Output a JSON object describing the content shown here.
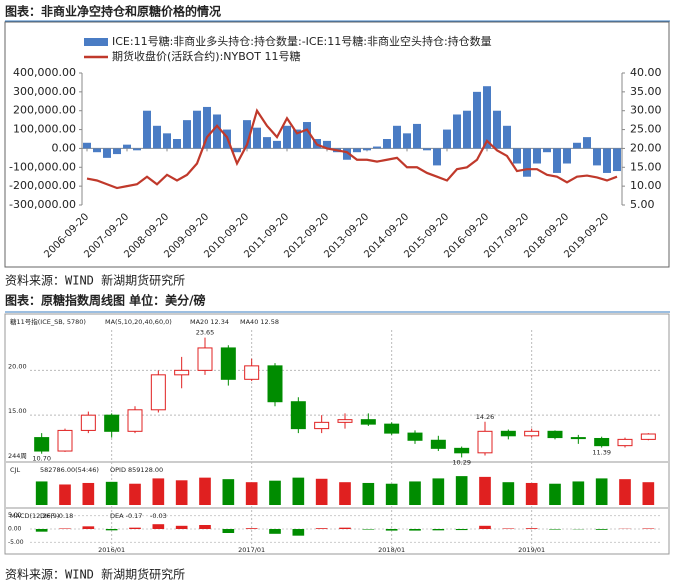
{
  "document": {
    "captions": [
      "图表：非商业净空持仓和原糖价格的情况",
      "图表：原糖指数周线图 单位：美分/磅"
    ],
    "sources": [
      "资料来源：WIND 新湖期货研究所",
      "资料来源：WIND 新湖期货研究所"
    ]
  },
  "chart_data": [
    {
      "type": "bar",
      "categories": [
        "2006-09-20",
        null,
        null,
        null,
        "2007-09-20",
        null,
        null,
        null,
        "2008-09-20",
        null,
        null,
        null,
        "2009-09-20",
        null,
        null,
        null,
        "2010-09-20",
        null,
        null,
        null,
        "2011-09-20",
        null,
        null,
        null,
        "2012-09-20",
        null,
        null,
        null,
        "2013-09-20",
        null,
        null,
        null,
        "2014-09-20",
        null,
        null,
        null,
        "2015-09-20",
        null,
        null,
        null,
        "2016-09-20",
        null,
        null,
        null,
        "2017-09-20",
        null,
        null,
        null,
        "2018-09-20",
        null,
        null,
        null,
        "2019-09-20",
        null
      ],
      "series": [
        {
          "name": "ICE:11号糖:非商业多头持仓:持仓数量:-ICE:11号糖:非商业空头持仓:持仓数量",
          "type": "bar",
          "color": "#4a7cc4",
          "values": [
            30000,
            -20000,
            -50000,
            -30000,
            20000,
            -10000,
            200000,
            120000,
            80000,
            50000,
            150000,
            200000,
            220000,
            180000,
            100000,
            -20000,
            150000,
            110000,
            60000,
            40000,
            120000,
            100000,
            140000,
            50000,
            40000,
            -20000,
            -60000,
            -20000,
            -10000,
            10000,
            50000,
            120000,
            80000,
            130000,
            -10000,
            -90000,
            100000,
            180000,
            200000,
            300000,
            330000,
            200000,
            120000,
            -80000,
            -150000,
            -80000,
            -20000,
            -130000,
            -80000,
            30000,
            60000,
            -90000,
            -130000,
            -120000
          ]
        },
        {
          "name": "期货收盘价(活跃合约):NYBOT 11号糖",
          "type": "line",
          "axis": "y2",
          "color": "#c0392b",
          "values": [
            12,
            11.5,
            10.5,
            9.5,
            10,
            10.5,
            12.5,
            10.5,
            13,
            11.5,
            13,
            16,
            23,
            26,
            23,
            16,
            21,
            30,
            26,
            23,
            28,
            24,
            25,
            21,
            20,
            19.5,
            19,
            17,
            17,
            16.5,
            17,
            17.5,
            15,
            15,
            13.5,
            12.5,
            11.5,
            14.5,
            15,
            17,
            22,
            19.5,
            18,
            14,
            14.5,
            14.5,
            13,
            12.5,
            11,
            12.5,
            12.8,
            12.3,
            11.5,
            12.5
          ]
        }
      ],
      "ylim": [
        -300000,
        400000
      ],
      "yticks": [
        {
          "value": -300000,
          "label": "-300,000.00"
        },
        {
          "value": -200000,
          "label": "-200,000.00"
        },
        {
          "value": -100000,
          "label": "-100,000.00"
        },
        {
          "value": 0,
          "label": "0.00"
        },
        {
          "value": 100000,
          "label": "100,000.00"
        },
        {
          "value": 200000,
          "label": "200,000.00"
        },
        {
          "value": 300000,
          "label": "300,000.00"
        },
        {
          "value": 400000,
          "label": "400,000.00"
        }
      ],
      "y2lim": [
        5,
        40
      ],
      "y2ticks": [
        {
          "value": 5,
          "label": "5.00"
        },
        {
          "value": 10,
          "label": "10.00"
        },
        {
          "value": 15,
          "label": "15.00"
        },
        {
          "value": 20,
          "label": "20.00"
        },
        {
          "value": 25,
          "label": "25.00"
        },
        {
          "value": 30,
          "label": "30.00"
        },
        {
          "value": 35,
          "label": "35.00"
        },
        {
          "value": 40,
          "label": "40.00"
        }
      ]
    },
    {
      "type": "candlestick",
      "header": [
        "糖11号指(ICE_SB, 5780)",
        "MA(5,10,20,40,60,0)",
        "MA20 12.34",
        "MA40 12.58"
      ],
      "categories": [
        null,
        null,
        null,
        "2016/01",
        null,
        null,
        null,
        null,
        null,
        "2017/01",
        null,
        null,
        null,
        null,
        null,
        "2018/01",
        null,
        null,
        null,
        null,
        null,
        "2019/01",
        null,
        null,
        null,
        null,
        null
      ],
      "open": [
        12.5,
        11.0,
        13.3,
        15.0,
        13.2,
        15.6,
        19.5,
        20.0,
        22.5,
        19.0,
        20.5,
        16.5,
        13.5,
        14.2,
        14.5,
        14.0,
        13.0,
        12.2,
        11.3,
        10.8,
        13.2,
        12.7,
        13.2,
        12.5,
        12.4,
        11.6,
        12.3
      ],
      "high": [
        13.0,
        13.5,
        15.4,
        15.2,
        16.0,
        20.0,
        21.5,
        23.65,
        22.8,
        21.3,
        20.8,
        17.0,
        15.0,
        15.2,
        15.2,
        14.2,
        13.3,
        12.7,
        11.5,
        14.26,
        13.4,
        13.5,
        13.3,
        12.8,
        12.6,
        12.5,
        13.0
      ],
      "low": [
        10.7,
        10.9,
        13.0,
        12.5,
        13.0,
        15.3,
        18.0,
        19.5,
        18.3,
        18.8,
        16.0,
        13.0,
        13.0,
        13.5,
        13.8,
        12.8,
        11.8,
        11.0,
        10.29,
        10.5,
        12.3,
        12.5,
        12.3,
        11.8,
        11.39,
        11.4,
        12.2
      ],
      "close": [
        11.0,
        13.3,
        15.0,
        13.2,
        15.6,
        19.5,
        20.0,
        22.5,
        19.0,
        20.5,
        16.5,
        13.5,
        14.2,
        14.5,
        14.0,
        13.0,
        12.2,
        11.3,
        10.8,
        13.2,
        12.7,
        13.2,
        12.5,
        12.4,
        11.6,
        12.3,
        12.9
      ],
      "up_color": "#e02020",
      "down_color": "#008c00",
      "ylim": [
        10,
        24.5
      ],
      "yticks": [
        {
          "value": 15,
          "label": "15.00"
        },
        {
          "value": 20,
          "label": "20.00"
        }
      ],
      "annotations": [
        {
          "value": 23.65,
          "label": "23.65"
        },
        {
          "value": 10.7,
          "label": "10.70"
        },
        {
          "value": 14.26,
          "label": "14.26"
        },
        {
          "value": 10.29,
          "label": "10.29"
        },
        {
          "value": 11.39,
          "label": "11.39"
        }
      ],
      "notes": [
        "244周"
      ]
    },
    {
      "type": "bar",
      "header": [
        "CJL",
        "582786.00(54:46)",
        "OPID 859128.00"
      ],
      "values": [
        620000,
        540000,
        580000,
        610000,
        560000,
        700000,
        650000,
        720000,
        680000,
        600000,
        640000,
        720000,
        690000,
        600000,
        580000,
        560000,
        620000,
        700000,
        760000,
        740000,
        600000,
        580000,
        560000,
        620000,
        700000,
        680000,
        600000
      ],
      "ylim": [
        0,
        1000000
      ]
    },
    {
      "type": "bar",
      "header": [
        "MACD(12,26,9)",
        "DIFF -0.18",
        "DEA -0.17",
        "-0.03"
      ],
      "values": [
        -1.0,
        0.2,
        1.0,
        -0.5,
        0.5,
        1.8,
        1.2,
        1.5,
        -1.5,
        0.3,
        -1.8,
        -2.5,
        0.3,
        0.5,
        -0.2,
        -0.6,
        -0.6,
        -0.5,
        -0.4,
        1.2,
        0.2,
        0.3,
        -0.2,
        -0.1,
        -0.3,
        0.1,
        0.2
      ],
      "ylim": [
        -6,
        6
      ],
      "yticks": [
        {
          "value": 5,
          "label": "5.00"
        },
        {
          "value": 0,
          "label": "0.00"
        },
        {
          "value": -5,
          "label": "-5.00"
        }
      ]
    }
  ]
}
